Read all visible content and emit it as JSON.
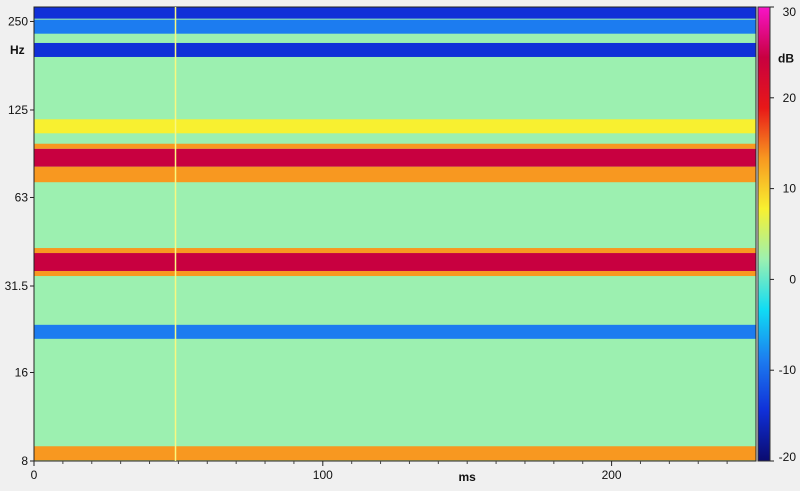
{
  "chart_data": {
    "type": "heatmap",
    "xlabel": "ms",
    "ylabel": "Hz",
    "colorbar_label": "dB",
    "xlim": [
      0,
      250
    ],
    "ylim": [
      8,
      280
    ],
    "yscale": "log2",
    "color_range": [
      -20,
      30
    ],
    "x_ticks": [
      {
        "value": 0,
        "label": "0"
      },
      {
        "value": 100,
        "label": "100"
      },
      {
        "value": 200,
        "label": "200"
      }
    ],
    "y_ticks": [
      {
        "value": 8,
        "label": "8"
      },
      {
        "value": 16,
        "label": "16"
      },
      {
        "value": 31.5,
        "label": "31.5"
      },
      {
        "value": 63,
        "label": "63"
      },
      {
        "value": 125,
        "label": "125"
      },
      {
        "value": 250,
        "label": "250"
      }
    ],
    "colorbar_ticks": [
      {
        "value": 30,
        "label": "30"
      },
      {
        "value": 20,
        "label": "20"
      },
      {
        "value": 10,
        "label": "10"
      },
      {
        "value": 0,
        "label": "0"
      },
      {
        "value": -10,
        "label": "-10"
      },
      {
        "value": -20,
        "label": "-20"
      }
    ],
    "colormap": [
      "#0a0a6e",
      "#1030d8",
      "#1c7cf0",
      "#10dcf4",
      "#9cf0b0",
      "#f8f030",
      "#f89820",
      "#e81818",
      "#c80040",
      "#f814c8"
    ],
    "cursor_ms": 49,
    "bands": [
      {
        "freq_hz": 86,
        "level_db": 22
      },
      {
        "freq_hz": 38,
        "level_db": 22
      },
      {
        "freq_hz": 75,
        "level_db": 11
      },
      {
        "freq_hz": 110,
        "level_db": 9
      },
      {
        "freq_hz": 175,
        "level_db": 4
      },
      {
        "freq_hz": 200,
        "level_db": -12
      },
      {
        "freq_hz": 240,
        "level_db": -10
      },
      {
        "freq_hz": 270,
        "level_db": -14
      },
      {
        "freq_hz": 22,
        "level_db": -9
      },
      {
        "freq_hz": 8.5,
        "level_db": 11
      }
    ]
  }
}
